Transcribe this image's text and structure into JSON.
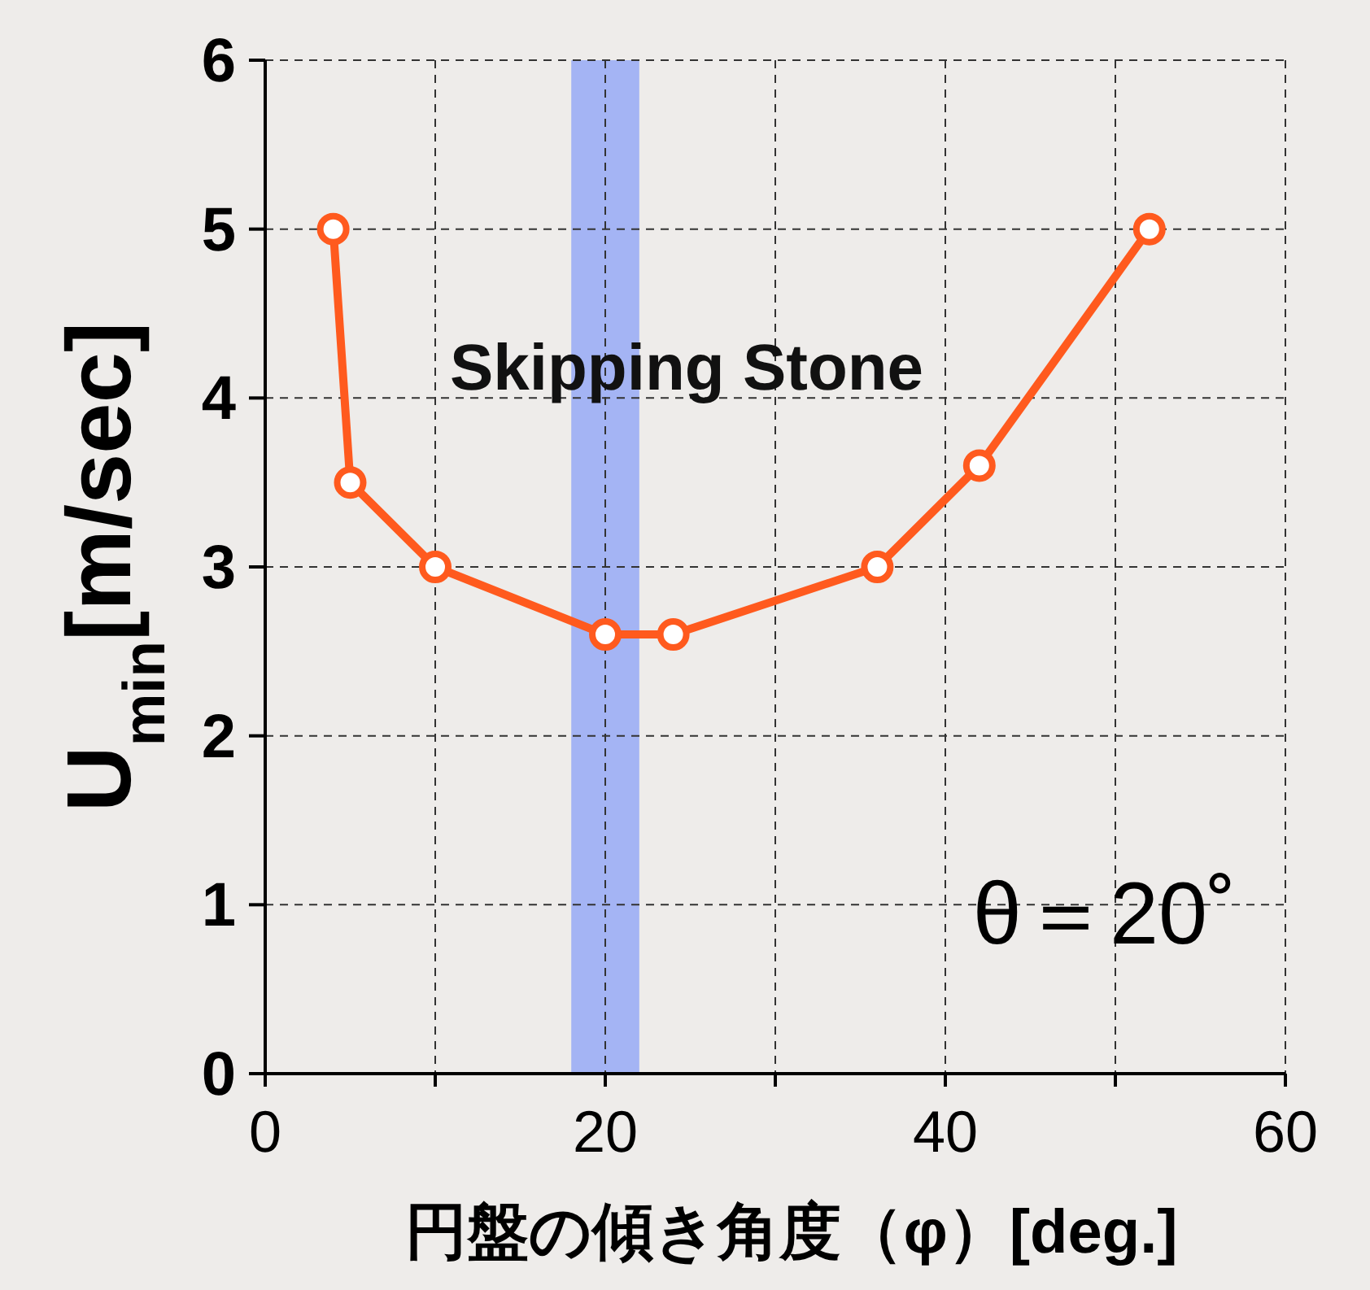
{
  "chart_data": {
    "type": "line",
    "xlabel": "円盤の傾き角度（φ）[deg.]",
    "ylabel": "U$_{min}$[m/sec]",
    "x": [
      4,
      5,
      10,
      20,
      24,
      36,
      42,
      52
    ],
    "series": [
      {
        "color": "#ff5a1e",
        "values": [
          5,
          3.5,
          3,
          2.6,
          2.6,
          3,
          3.6,
          5
        ]
      }
    ],
    "marker": "circle",
    "line_style": "solid",
    "grid": true,
    "xlim": [
      0,
      60
    ],
    "xticks": [
      0,
      {
        "value": 10,
        "label": null
      },
      20,
      {
        "value": 30,
        "label": null
      },
      40,
      {
        "value": 50,
        "label": null
      },
      60
    ],
    "ylim": [
      0,
      6
    ],
    "yticks": [
      0,
      1,
      2,
      3,
      4,
      5,
      6
    ],
    "bands": [
      {
        "axis": "x",
        "from": 18,
        "to": 22,
        "label": "Skipping Stone",
        "color": "#a4b4f4"
      }
    ],
    "annotations": [
      "θ＝20˚"
    ]
  }
}
